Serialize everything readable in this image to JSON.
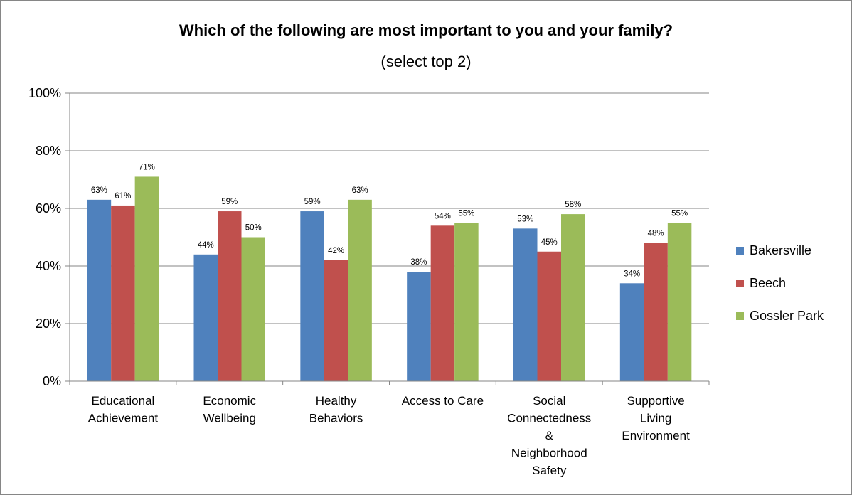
{
  "chart_data": {
    "type": "bar",
    "title": "Which of the following are most important to you and your family?",
    "subtitle": "(select top 2)",
    "categories": [
      [
        "Educational",
        "Achievement"
      ],
      [
        "Economic",
        "Wellbeing"
      ],
      [
        "Healthy",
        "Behaviors"
      ],
      [
        "Access to Care"
      ],
      [
        "Social",
        "Connectedness",
        "&",
        "Neighborhood",
        "Safety"
      ],
      [
        "Supportive",
        "Living",
        "Environment"
      ]
    ],
    "series": [
      {
        "name": "Bakersville",
        "color": "#4F81BD",
        "values": [
          63,
          44,
          59,
          38,
          53,
          34
        ],
        "labels": [
          "63%",
          "44%",
          "59%",
          "38%",
          "53%",
          "34%"
        ]
      },
      {
        "name": "Beech",
        "color": "#C0504D",
        "values": [
          61,
          59,
          42,
          54,
          45,
          48
        ],
        "labels": [
          "61%",
          "59%",
          "42%",
          "54%",
          "45%",
          "48%"
        ]
      },
      {
        "name": "Gossler Park",
        "color": "#9BBB59",
        "values": [
          71,
          50,
          63,
          55,
          58,
          55
        ],
        "labels": [
          "71%",
          "50%",
          "63%",
          "55%",
          "58%",
          "55%"
        ]
      }
    ],
    "ylim": [
      0,
      100
    ],
    "yticks": [
      "0%",
      "20%",
      "40%",
      "60%",
      "80%",
      "100%"
    ],
    "grid": true,
    "legend_position": "right"
  }
}
